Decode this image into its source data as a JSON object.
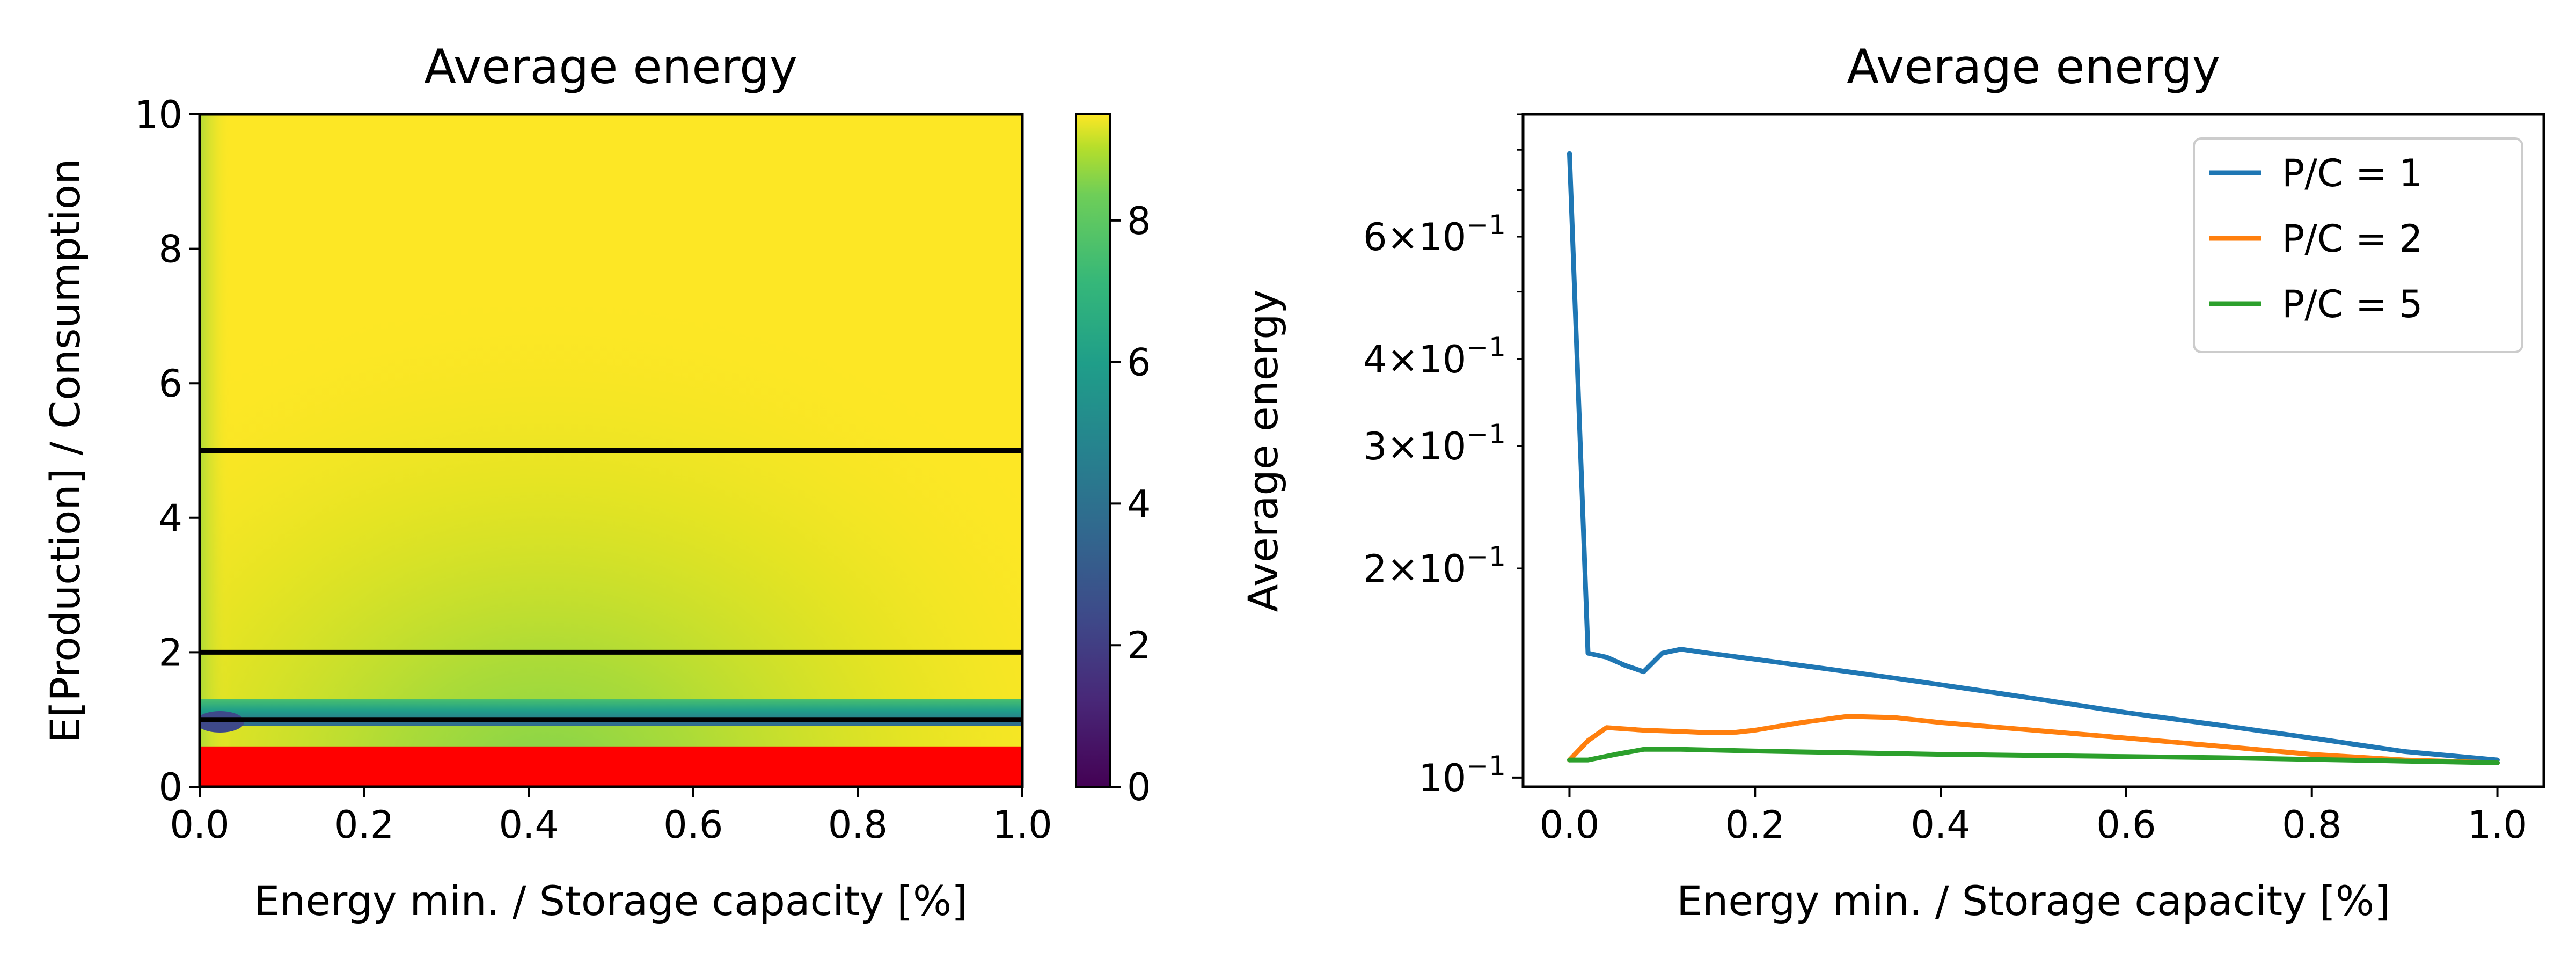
{
  "chart_data": [
    {
      "type": "heatmap",
      "title": "Average energy",
      "xlabel": "Energy min. / Storage capacity [%]",
      "ylabel": "E[Production] / Consumption",
      "xlim": [
        0.0,
        1.0
      ],
      "ylim": [
        0,
        10
      ],
      "xticks": [
        "0.0",
        "0.2",
        "0.4",
        "0.6",
        "0.8",
        "1.0"
      ],
      "yticks": [
        "0",
        "2",
        "4",
        "6",
        "8",
        "10"
      ],
      "colorbar": {
        "range": [
          0,
          9.5
        ],
        "ticks": [
          "0",
          "2",
          "4",
          "6",
          "8"
        ],
        "colormap": "viridis"
      },
      "masked_region": {
        "color": "#ff0000",
        "y_range": [
          0,
          0.6
        ]
      },
      "reference_lines": [
        1,
        2,
        5
      ],
      "reference_line_color": "#000000"
    },
    {
      "type": "line",
      "title": "Average energy",
      "xlabel": "Energy min. / Storage capacity [%]",
      "ylabel": "Average energy",
      "yscale": "log",
      "xlim": [
        -0.05,
        1.05
      ],
      "ylim": [
        0.097,
        0.9
      ],
      "xticks": [
        "0.0",
        "0.2",
        "0.4",
        "0.6",
        "0.8",
        "1.0"
      ],
      "yticks": [
        {
          "value": 0.6,
          "mantissa": "6",
          "exp": "−1"
        },
        {
          "value": 0.4,
          "mantissa": "4",
          "exp": "−1"
        },
        {
          "value": 0.3,
          "mantissa": "3",
          "exp": "−1"
        },
        {
          "value": 0.2,
          "mantissa": "2",
          "exp": "−1"
        },
        {
          "value": 0.1,
          "mantissa": "",
          "exp": "−1"
        }
      ],
      "legend_position": "upper right",
      "series": [
        {
          "name": "P/C = 1",
          "color": "#1f77b4",
          "x": [
            0.0,
            0.02,
            0.04,
            0.06,
            0.08,
            0.1,
            0.12,
            0.15,
            0.2,
            0.25,
            0.3,
            0.35,
            0.4,
            0.45,
            0.5,
            0.6,
            0.7,
            0.8,
            0.9,
            1.0
          ],
          "y": [
            0.79,
            0.151,
            0.149,
            0.145,
            0.142,
            0.151,
            0.153,
            0.151,
            0.148,
            0.145,
            0.142,
            0.139,
            0.136,
            0.133,
            0.13,
            0.124,
            0.119,
            0.114,
            0.109,
            0.106
          ]
        },
        {
          "name": "P/C = 2",
          "color": "#ff7f0e",
          "x": [
            0.0,
            0.02,
            0.04,
            0.08,
            0.12,
            0.15,
            0.18,
            0.2,
            0.25,
            0.3,
            0.35,
            0.4,
            0.5,
            0.6,
            0.7,
            0.8,
            0.9,
            1.0
          ],
          "y": [
            0.106,
            0.113,
            0.118,
            0.117,
            0.1165,
            0.116,
            0.1162,
            0.117,
            0.12,
            0.1225,
            0.122,
            0.12,
            0.117,
            0.114,
            0.111,
            0.108,
            0.106,
            0.105
          ]
        },
        {
          "name": "P/C = 5",
          "color": "#2ca02c",
          "x": [
            0.0,
            0.02,
            0.05,
            0.08,
            0.12,
            0.2,
            0.3,
            0.4,
            0.5,
            0.6,
            0.7,
            0.8,
            0.9,
            1.0
          ],
          "y": [
            0.106,
            0.106,
            0.108,
            0.1098,
            0.1098,
            0.1092,
            0.1086,
            0.108,
            0.1076,
            0.1072,
            0.1068,
            0.1062,
            0.1056,
            0.105
          ]
        }
      ]
    }
  ]
}
